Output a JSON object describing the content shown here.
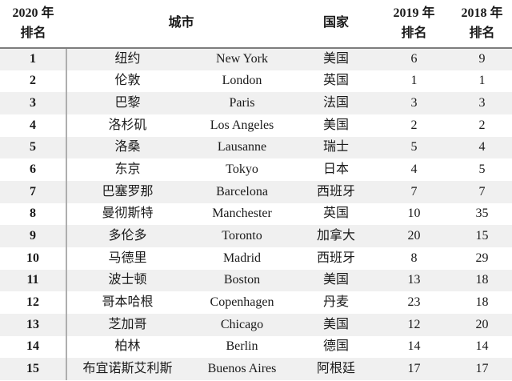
{
  "table": {
    "headers": {
      "rank2020": "2020 年\n排名",
      "city": "城市",
      "country": "国家",
      "rank2019": "2019 年\n排名",
      "rank2018": "2018 年\n排名"
    },
    "rows": [
      {
        "rank2020": "1",
        "city_cn": "纽约",
        "city_en": "New York",
        "country": "美国",
        "rank2019": "6",
        "rank2018": "9"
      },
      {
        "rank2020": "2",
        "city_cn": "伦敦",
        "city_en": "London",
        "country": "英国",
        "rank2019": "1",
        "rank2018": "1"
      },
      {
        "rank2020": "3",
        "city_cn": "巴黎",
        "city_en": "Paris",
        "country": "法国",
        "rank2019": "3",
        "rank2018": "3"
      },
      {
        "rank2020": "4",
        "city_cn": "洛杉矶",
        "city_en": "Los Angeles",
        "country": "美国",
        "rank2019": "2",
        "rank2018": "2"
      },
      {
        "rank2020": "5",
        "city_cn": "洛桑",
        "city_en": "Lausanne",
        "country": "瑞士",
        "rank2019": "5",
        "rank2018": "4"
      },
      {
        "rank2020": "6",
        "city_cn": "东京",
        "city_en": "Tokyo",
        "country": "日本",
        "rank2019": "4",
        "rank2018": "5"
      },
      {
        "rank2020": "7",
        "city_cn": "巴塞罗那",
        "city_en": "Barcelona",
        "country": "西班牙",
        "rank2019": "7",
        "rank2018": "7"
      },
      {
        "rank2020": "8",
        "city_cn": "曼彻斯特",
        "city_en": "Manchester",
        "country": "英国",
        "rank2019": "10",
        "rank2018": "35"
      },
      {
        "rank2020": "9",
        "city_cn": "多伦多",
        "city_en": "Toronto",
        "country": "加拿大",
        "rank2019": "20",
        "rank2018": "15"
      },
      {
        "rank2020": "10",
        "city_cn": "马德里",
        "city_en": "Madrid",
        "country": "西班牙",
        "rank2019": "8",
        "rank2018": "29"
      },
      {
        "rank2020": "11",
        "city_cn": "波士顿",
        "city_en": "Boston",
        "country": "美国",
        "rank2019": "13",
        "rank2018": "18"
      },
      {
        "rank2020": "12",
        "city_cn": "哥本哈根",
        "city_en": "Copenhagen",
        "country": "丹麦",
        "rank2019": "23",
        "rank2018": "18"
      },
      {
        "rank2020": "13",
        "city_cn": "芝加哥",
        "city_en": "Chicago",
        "country": "美国",
        "rank2019": "12",
        "rank2018": "20"
      },
      {
        "rank2020": "14",
        "city_cn": "柏林",
        "city_en": "Berlin",
        "country": "德国",
        "rank2019": "14",
        "rank2018": "14"
      },
      {
        "rank2020": "15",
        "city_cn": "布宜诺斯艾利斯",
        "city_en": "Buenos Aires",
        "country": "阿根廷",
        "rank2019": "17",
        "rank2018": "17"
      }
    ]
  },
  "colors": {
    "stripe": "#f0f0f0",
    "header_rule": "#7d7d7d",
    "divider": "#aeaeae",
    "text": "#1a1a1a"
  }
}
